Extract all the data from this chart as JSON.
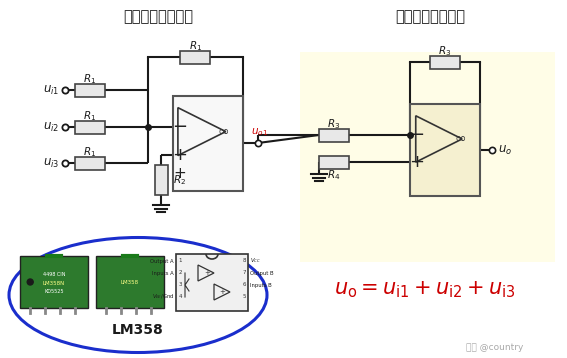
{
  "title_left": "反相加法运算电路",
  "title_right": "反相比例运算电路",
  "watermark": "知乎 @country",
  "bg_color": "#ffffff",
  "yellow_bg": "#fffde7",
  "blue_ellipse_color": "#1a2ecc",
  "wire_color": "#1a1a1a",
  "red_color": "#cc0000",
  "resistor_fill": "#e8e8e8",
  "resistor_border": "#444444",
  "opamp_fill": "#f8f8f8",
  "opamp_fill2": "#f5f0d0",
  "opamp_border": "#555555",
  "chip_fill": "#2d7a2d",
  "pin_fill": "#f0f0f0",
  "title_fontsize": 10.5,
  "lm358_fontsize": 10,
  "formula_fontsize": 15,
  "label_fontsize": 8.5,
  "small_fontsize": 7
}
